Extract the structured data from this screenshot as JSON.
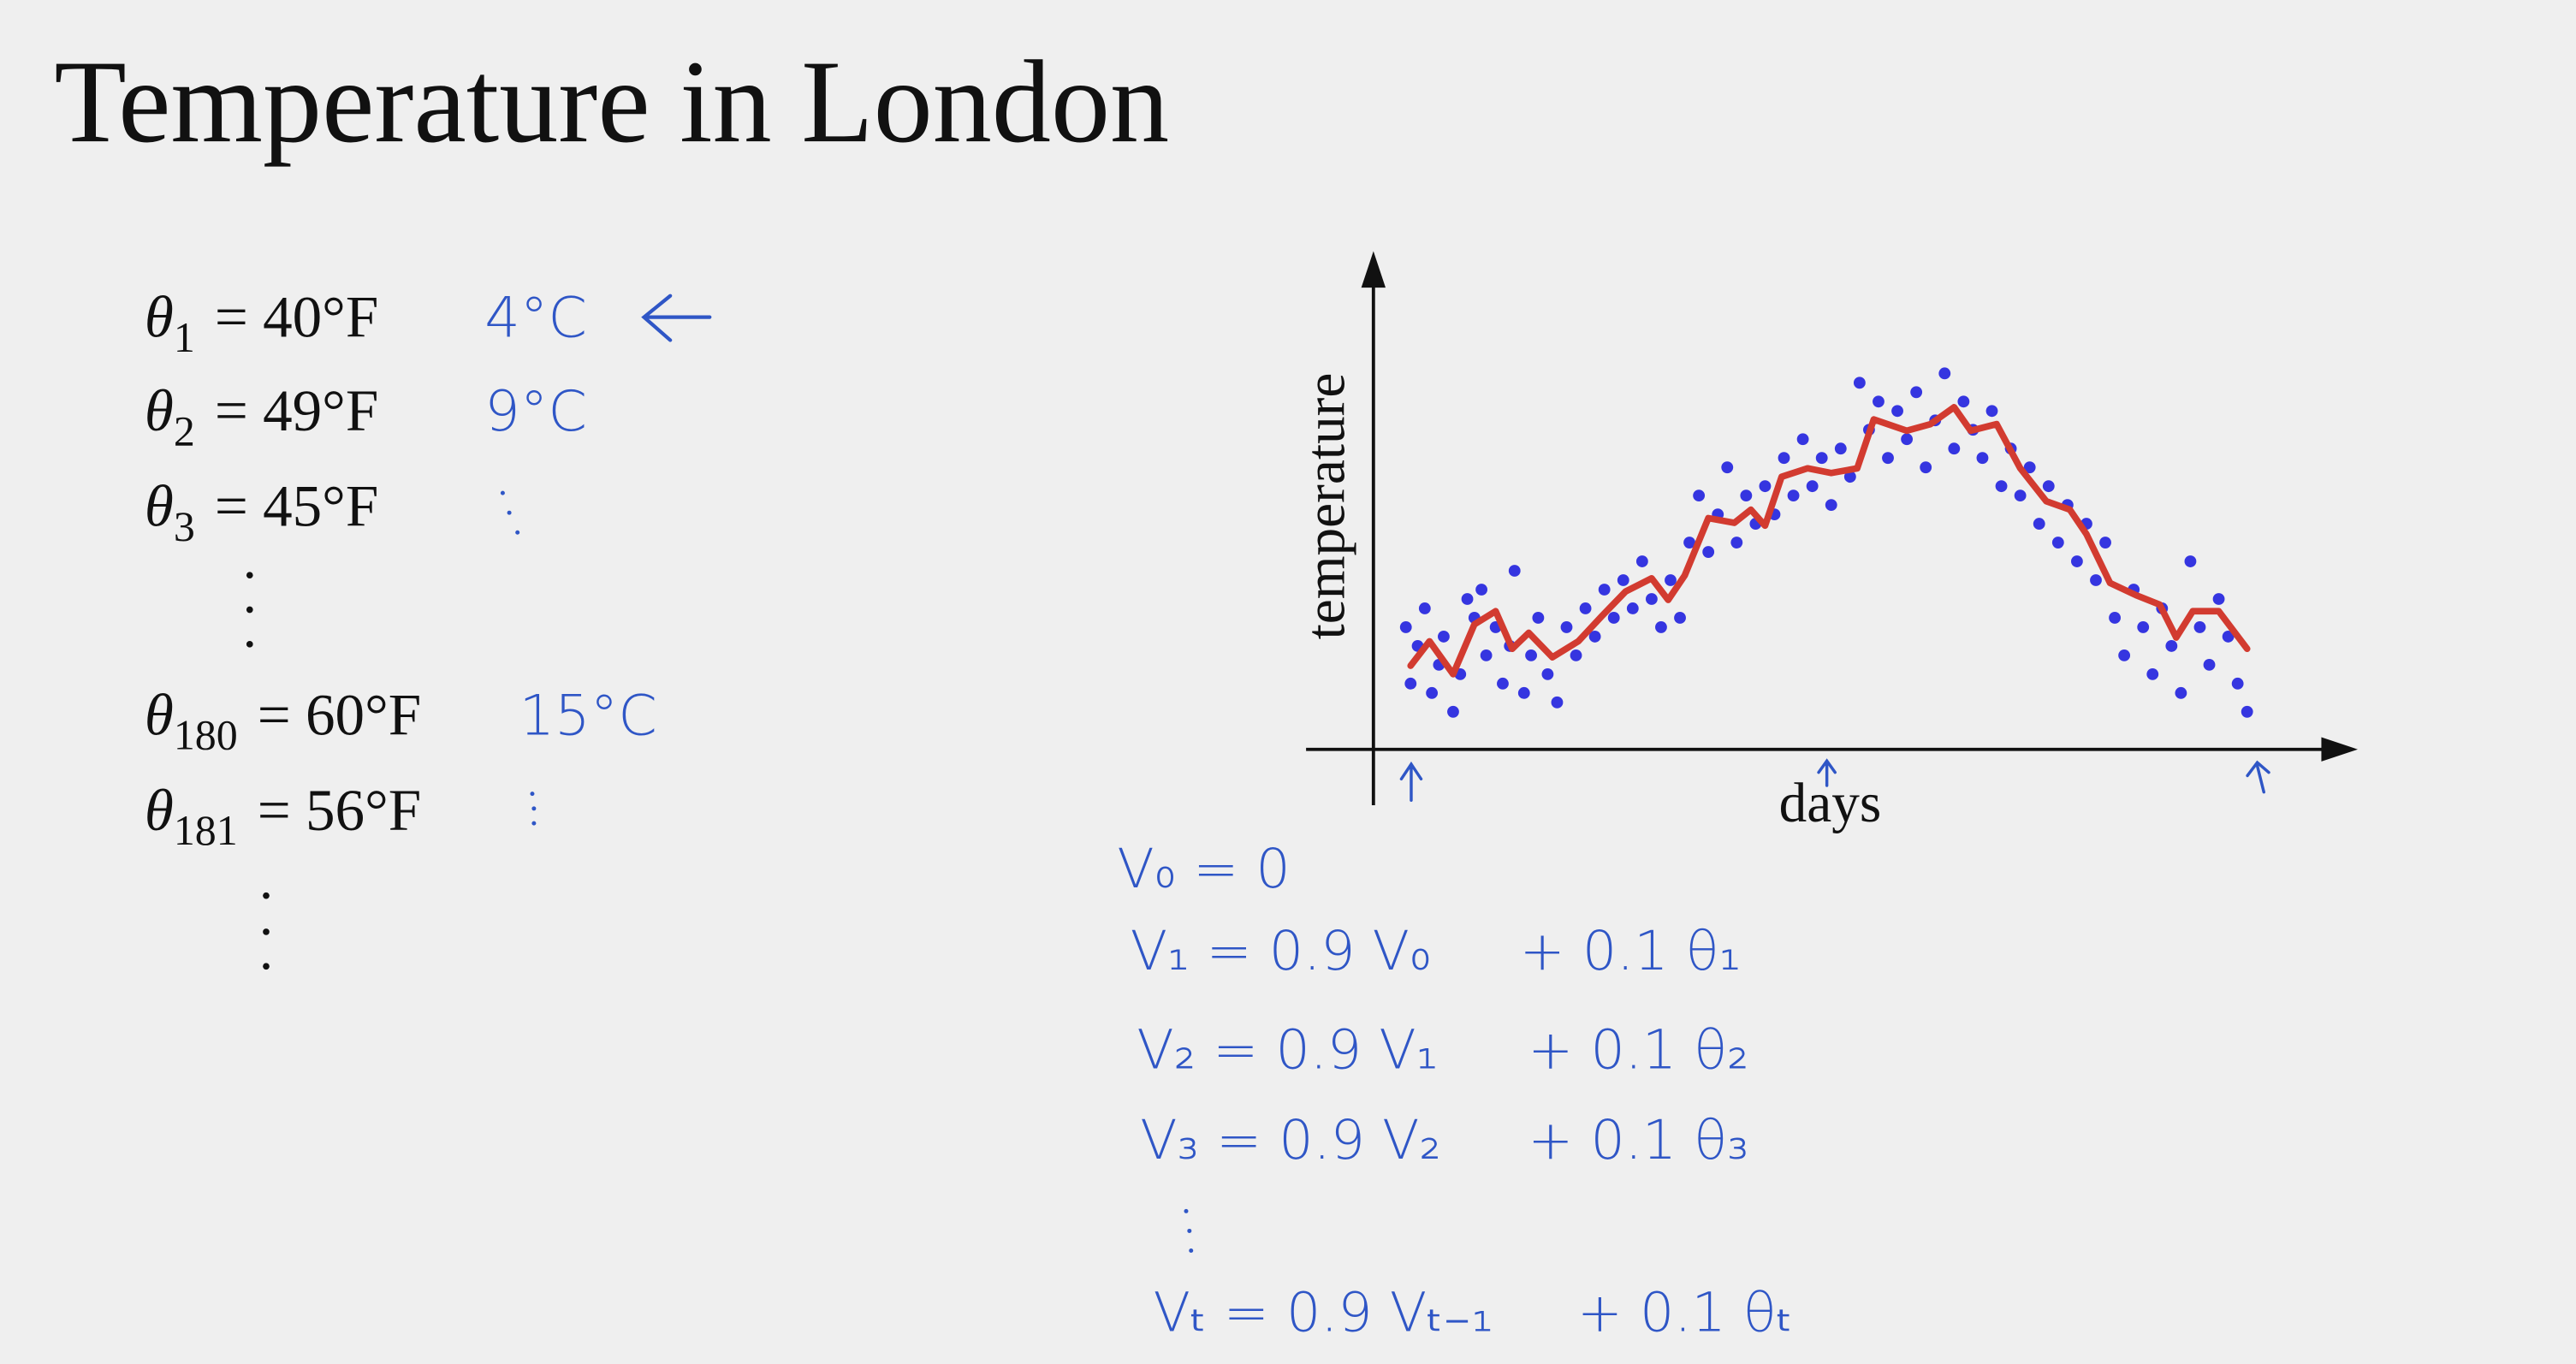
{
  "title": "Temperature in London",
  "readings": [
    {
      "symbol": "θ",
      "sub": "1",
      "rhs": "= 40°F",
      "note": "4°C"
    },
    {
      "symbol": "θ",
      "sub": "2",
      "rhs": "= 49°F",
      "note": "9°C"
    },
    {
      "symbol": "θ",
      "sub": "3",
      "rhs": "= 45°F"
    },
    {
      "symbol": "θ",
      "sub": "180",
      "rhs": "= 60°F",
      "note": "15°C"
    },
    {
      "symbol": "θ",
      "sub": "181",
      "rhs": "= 56°F"
    }
  ],
  "equations": [
    {
      "lhs": "V₀ = 0"
    },
    {
      "lhs": "V₁ = 0.9 V₀",
      "rhs": "+ 0.1 θ₁"
    },
    {
      "lhs": "V₂ = 0.9 V₁",
      "rhs": "+ 0.1 θ₂"
    },
    {
      "lhs": "V₃ = 0.9 V₂",
      "rhs": "+ 0.1 θ₃"
    },
    {
      "lhs": "Vₜ = 0.9 Vₜ₋₁",
      "rhs": "+ 0.1 θₜ"
    }
  ],
  "chart_data": {
    "type": "scatter",
    "x_label": "days",
    "y_label": "temperature",
    "xlim": [
      0,
      365
    ],
    "ylim": [
      30,
      80
    ],
    "points": {
      "color": "#3535e0",
      "x": [
        4,
        6,
        9,
        12,
        15,
        18,
        20,
        24,
        27,
        30,
        33,
        36,
        38,
        42,
        45,
        48,
        50,
        54,
        57,
        60,
        64,
        68,
        72,
        76,
        80,
        84,
        88,
        92,
        96,
        100,
        104,
        108,
        112,
        116,
        120,
        124,
        128,
        132,
        136,
        140,
        144,
        148,
        152,
        156,
        160,
        164,
        168,
        172,
        176,
        180,
        184,
        188,
        192,
        196,
        200,
        204,
        208,
        212,
        216,
        220,
        224,
        228,
        232,
        236,
        240,
        244,
        248,
        252,
        256,
        260,
        264,
        268,
        272,
        276,
        280,
        284,
        288,
        292,
        296,
        300,
        304,
        308,
        312,
        316,
        320,
        324,
        328,
        332,
        336,
        340,
        344,
        348,
        352,
        356,
        360
      ],
      "y": [
        43,
        37,
        41,
        45,
        36,
        39,
        42,
        34,
        38,
        46,
        44,
        47,
        40,
        43,
        37,
        41,
        49,
        36,
        40,
        44,
        38,
        35,
        43,
        40,
        45,
        42,
        47,
        44,
        48,
        45,
        50,
        46,
        43,
        48,
        44,
        52,
        57,
        51,
        55,
        60,
        52,
        57,
        54,
        58,
        55,
        61,
        57,
        63,
        58,
        61,
        56,
        62,
        59,
        69,
        64,
        67,
        61,
        66,
        63,
        68,
        60,
        65,
        70,
        62,
        67,
        64,
        61,
        66,
        58,
        62,
        57,
        60,
        54,
        58,
        52,
        56,
        50,
        54,
        48,
        52,
        44,
        40,
        47,
        43,
        38,
        45,
        41,
        36,
        50,
        43,
        39,
        46,
        42,
        37,
        34
      ]
    },
    "average": {
      "color": "#d23b30",
      "x": [
        6,
        14,
        24,
        33,
        42,
        49,
        56,
        66,
        77,
        87,
        97,
        108,
        115,
        122,
        132,
        143,
        150,
        156,
        163,
        174,
        184,
        195,
        202,
        216,
        226,
        236,
        243,
        254,
        264,
        275,
        285,
        292,
        302,
        313,
        323,
        330,
        337,
        348,
        360
      ],
      "y": [
        38.9,
        41.5,
        38.0,
        43.3,
        44.7,
        40.7,
        42.4,
        39.8,
        41.5,
        44.2,
        46.8,
        48.2,
        45.9,
        48.5,
        54.6,
        54.1,
        55.5,
        53.8,
        59.0,
        59.9,
        59.4,
        59.9,
        65.1,
        63.9,
        64.6,
        66.4,
        63.9,
        64.6,
        59.9,
        56.4,
        55.5,
        52.9,
        47.7,
        46.4,
        45.4,
        41.9,
        44.7,
        44.7,
        40.7
      ]
    }
  }
}
